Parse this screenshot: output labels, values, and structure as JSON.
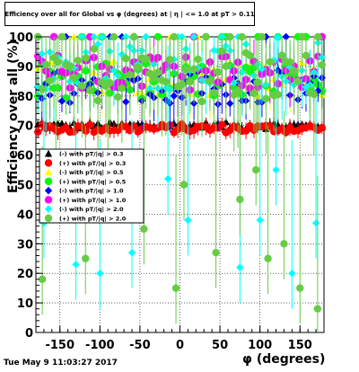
{
  "page": {
    "title": "Efficiency over all for Global vs φ (degrees) at | η | <= 1.0 at pT > 0.11",
    "timestamp": "Tue May  9 11:03:27 2017"
  },
  "chart_data": {
    "type": "scatter",
    "title": "Efficiency over all for Global vs φ (degrees) at | η | <= 1.0 at pT > 0.11",
    "xlabel": "φ (degrees)",
    "ylabel": "Efficiency over all (%)",
    "xlim": [
      -180,
      180
    ],
    "ylim": [
      0,
      100
    ],
    "xticks": [
      -150,
      -100,
      -50,
      0,
      50,
      100,
      150
    ],
    "yticks": [
      0,
      10,
      20,
      30,
      40,
      50,
      60,
      70,
      80,
      90,
      100
    ],
    "grid": true,
    "legend_position": "center-left",
    "series": [
      {
        "name": "(-) with pT/|q| > 0.3",
        "color": "#000000",
        "marker": "triangle",
        "level": 70,
        "spread": 1.2,
        "err": 1.5,
        "outliers": []
      },
      {
        "name": "(+) with pT/|q| > 0.3",
        "color": "#ff0000",
        "marker": "circle",
        "level": 69,
        "spread": 1.5,
        "err": 2,
        "outliers": []
      },
      {
        "name": "(-) with pT/|q| > 0.5",
        "color": "#ffff00",
        "marker": "triangle",
        "level": 86,
        "spread": 6,
        "err": 6,
        "outliers": []
      },
      {
        "name": "(+) with pT/|q| > 0.5",
        "color": "#00ff00",
        "marker": "circle",
        "level": 85,
        "spread": 6,
        "err": 7,
        "outliers": []
      },
      {
        "name": "(-) with pT/|q| > 1.0",
        "color": "#0000ff",
        "marker": "diamond",
        "level": 83,
        "spread": 6,
        "err": 7,
        "outliers": []
      },
      {
        "name": "(+) with pT/|q| > 1.0",
        "color": "#ff00ff",
        "marker": "circle",
        "level": 88,
        "spread": 6,
        "err": 7,
        "outliers": []
      },
      {
        "name": "(-) with pT/|q| > 2.0",
        "color": "#00ffff",
        "marker": "diamond",
        "level": 90,
        "spread": 8,
        "err": 10,
        "outliers": [
          [
            -170,
            37
          ],
          [
            -130,
            23
          ],
          [
            -100,
            20
          ],
          [
            -60,
            27
          ],
          [
            -15,
            52
          ],
          [
            10,
            38
          ],
          [
            75,
            22
          ],
          [
            100,
            38
          ],
          [
            120,
            55
          ],
          [
            140,
            20
          ],
          [
            170,
            37
          ]
        ]
      },
      {
        "name": "(+) with pT/|q| > 2.0",
        "color": "#66cc44",
        "marker": "circle",
        "level": 87,
        "spread": 9,
        "err": 14,
        "outliers": [
          [
            -172,
            18
          ],
          [
            -155,
            60
          ],
          [
            -118,
            25
          ],
          [
            -90,
            55
          ],
          [
            -45,
            35
          ],
          [
            -5,
            15
          ],
          [
            5,
            50
          ],
          [
            45,
            27
          ],
          [
            75,
            45
          ],
          [
            95,
            55
          ],
          [
            110,
            25
          ],
          [
            130,
            30
          ],
          [
            150,
            15
          ],
          [
            172,
            8
          ]
        ]
      }
    ]
  }
}
